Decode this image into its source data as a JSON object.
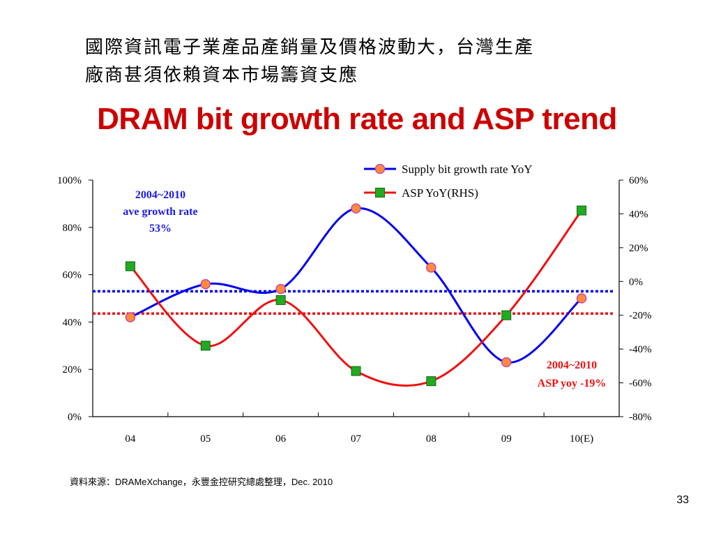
{
  "slide": {
    "heading_line1": "國際資訊電子業產品產銷量及價格波動大，台灣生產",
    "heading_line2": "廠商甚須依賴資本市場籌資支應",
    "title": "DRAM bit growth rate and ASP trend",
    "source": "資料來源：DRAMeXchange，永豐金控研究總處整理，Dec. 2010",
    "page_number": "33"
  },
  "chart_data": {
    "type": "line",
    "categories": [
      "04",
      "05",
      "06",
      "07",
      "08",
      "09",
      "10(E)"
    ],
    "y_left": {
      "ylim": [
        0,
        100
      ],
      "ticks": [
        "0%",
        "20%",
        "40%",
        "60%",
        "80%",
        "100%"
      ]
    },
    "y_right": {
      "ylim": [
        -80,
        60
      ],
      "ticks": [
        "-80%",
        "-60%",
        "-40%",
        "-20%",
        "0%",
        "20%",
        "40%",
        "60%"
      ]
    },
    "grid": false,
    "legend_position": "top-right",
    "series": [
      {
        "name": "Supply bit growth rate YoY",
        "axis": "left",
        "values": [
          42,
          56,
          54,
          88,
          63,
          23,
          50
        ],
        "color": "#0000ee",
        "marker": "circle",
        "marker_color": "#ff8c3a"
      },
      {
        "name": "ASP YoY(RHS)",
        "axis": "right",
        "values": [
          9,
          -38,
          -11,
          -53,
          -59,
          -20,
          42
        ],
        "color": "#ee1111",
        "marker": "square",
        "marker_color": "#22aa22"
      }
    ],
    "reference_lines": [
      {
        "axis": "left",
        "value": 53,
        "color": "#0000ee",
        "style": "dotted"
      },
      {
        "axis": "right",
        "value": -19,
        "color": "#ee1111",
        "style": "dotted"
      }
    ],
    "annotations": [
      {
        "lines": [
          "2004~2010",
          "ave growth rate",
          "53%"
        ],
        "color": "#1a1aee",
        "position": "top-left"
      },
      {
        "lines": [
          "2004~2010",
          "ASP yoy -19%"
        ],
        "color": "#ee1111",
        "position": "bottom-right"
      }
    ]
  }
}
